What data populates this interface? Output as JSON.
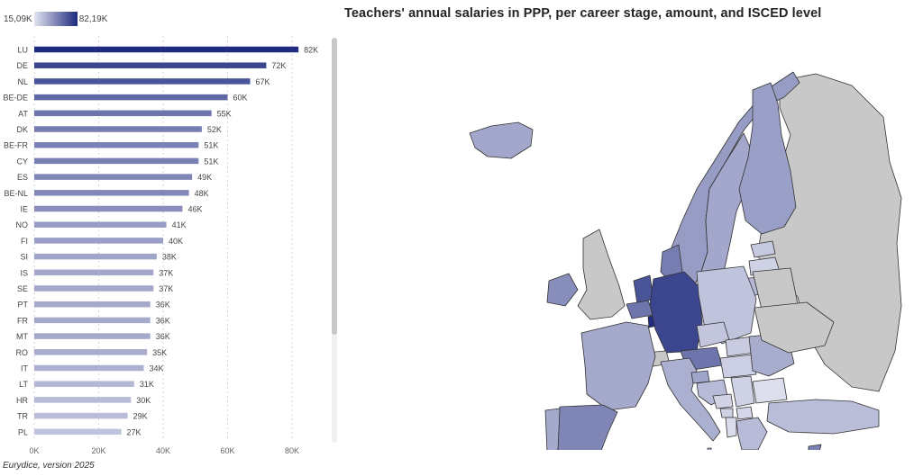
{
  "legend": {
    "min_label": "15,09K",
    "max_label": "82,19K",
    "low_color": "#e3e4f0",
    "high_color": "#1d2a7e"
  },
  "title": "Teachers' annual salaries in PPP, per career stage, amount, and ISCED level",
  "source": "Eurydice, version 2025",
  "chart_data": {
    "type": "bar",
    "orientation": "horizontal",
    "categories": [
      "LU",
      "DE",
      "NL",
      "BE-DE",
      "AT",
      "DK",
      "BE-FR",
      "CY",
      "ES",
      "BE-NL",
      "IE",
      "NO",
      "FI",
      "SI",
      "IS",
      "SE",
      "PT",
      "FR",
      "MT",
      "RO",
      "IT",
      "LT",
      "HR",
      "TR",
      "PL"
    ],
    "values": [
      82,
      72,
      67,
      60,
      55,
      52,
      51,
      51,
      49,
      48,
      46,
      41,
      40,
      38,
      37,
      37,
      36,
      36,
      36,
      35,
      34,
      31,
      30,
      29,
      27
    ],
    "data_labels": [
      "82K",
      "72K",
      "67K",
      "60K",
      "55K",
      "52K",
      "51K",
      "51K",
      "49K",
      "48K",
      "46K",
      "41K",
      "40K",
      "38K",
      "37K",
      "37K",
      "36K",
      "36K",
      "36K",
      "35K",
      "34K",
      "31K",
      "30K",
      "29K",
      "27K"
    ],
    "x_ticks": [
      0,
      20000,
      40000,
      60000,
      80000
    ],
    "x_tick_labels": [
      "0K",
      "20K",
      "40K",
      "60K",
      "80K"
    ],
    "xlim": [
      0,
      85000
    ],
    "grid": true,
    "color_scale": {
      "min": 15.09,
      "max": 82.19
    }
  },
  "map": {
    "country_values": {
      "LU": 82,
      "DE": 72,
      "NL": 67,
      "BE": 55,
      "AT": 55,
      "DK": 52,
      "CY": 51,
      "ES": 49,
      "IE": 46,
      "NO": 41,
      "FI": 40,
      "SI": 38,
      "IS": 37,
      "SE": 37,
      "PT": 36,
      "FR": 36,
      "MT": 36,
      "RO": 35,
      "IT": 34,
      "LT": 31,
      "HR": 30,
      "TR": 29,
      "PL": 27,
      "CZ": 26,
      "SK": 24,
      "HU": 23,
      "RS": 22,
      "BG": 17,
      "EE": 25,
      "LV": 22,
      "GR": 30,
      "AL": 18,
      "MK": 20,
      "BA": 21,
      "ME": 22
    },
    "no_data_color": "#c8c8c8"
  }
}
